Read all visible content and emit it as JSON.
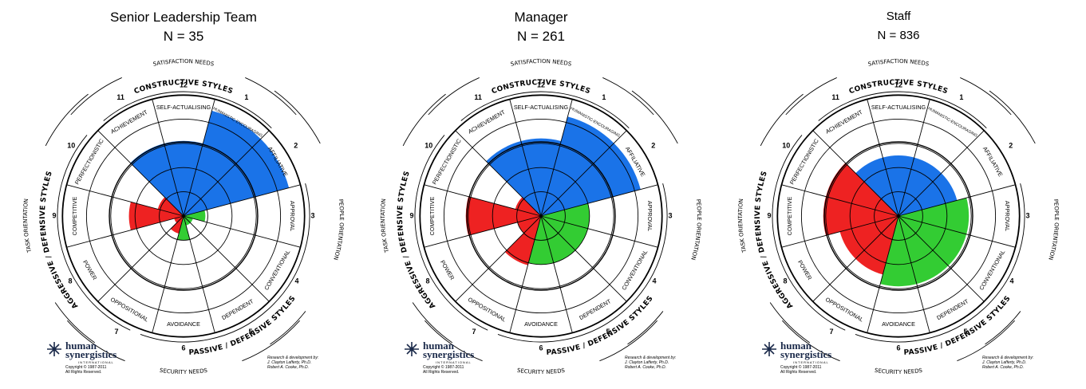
{
  "chart_data": [
    {
      "type": "circumplex",
      "title": "Senior Leadership Team",
      "subtitle": "N = 35",
      "series": [
        {
          "group": "constructive",
          "color": "#1a73e8",
          "segments": [
            {
              "number": "11",
              "label": "ACHIEVEMENT",
              "value": 0.62
            },
            {
              "number": "12",
              "label": "SELF-ACTUALISING",
              "value": 0.62
            },
            {
              "number": "1",
              "label": "HUMANISTIC-ENCOURAGING",
              "value": 0.9
            },
            {
              "number": "2",
              "label": "AFFILIATIVE",
              "value": 0.9
            }
          ]
        },
        {
          "group": "passive_defensive",
          "color": "#33cc33",
          "segments": [
            {
              "number": "3",
              "label": "APPROVAL",
              "value": 0.18
            },
            {
              "number": "4",
              "label": "CONVENTIONAL",
              "value": 0.08
            },
            {
              "number": "5",
              "label": "DEPENDENT",
              "value": 0.08
            },
            {
              "number": "6",
              "label": "AVOIDANCE",
              "value": 0.2
            }
          ]
        },
        {
          "group": "aggressive_defensive",
          "color": "#ee2222",
          "segments": [
            {
              "number": "7",
              "label": "OPPOSITIONAL",
              "value": 0.15
            },
            {
              "number": "8",
              "label": "POWER",
              "value": 0.08
            },
            {
              "number": "9",
              "label": "COMPETITIVE",
              "value": 0.45
            },
            {
              "number": "10",
              "label": "PERFECTIONISTIC",
              "value": 0.22
            }
          ]
        }
      ]
    },
    {
      "type": "circumplex",
      "title": "Manager",
      "subtitle": "N = 261",
      "series": [
        {
          "group": "constructive",
          "color": "#1a73e8",
          "segments": [
            {
              "number": "11",
              "label": "ACHIEVEMENT",
              "value": 0.64
            },
            {
              "number": "12",
              "label": "SELF-ACTUALISING",
              "value": 0.64
            },
            {
              "number": "1",
              "label": "HUMANISTIC-ENCOURAGING",
              "value": 0.85
            },
            {
              "number": "2",
              "label": "AFFILIATIVE",
              "value": 0.85
            }
          ]
        },
        {
          "group": "passive_defensive",
          "color": "#33cc33",
          "segments": [
            {
              "number": "3",
              "label": "APPROVAL",
              "value": 0.4
            },
            {
              "number": "4",
              "label": "CONVENTIONAL",
              "value": 0.4
            },
            {
              "number": "5",
              "label": "DEPENDENT",
              "value": 0.4
            },
            {
              "number": "6",
              "label": "AVOIDANCE",
              "value": 0.4
            }
          ]
        },
        {
          "group": "aggressive_defensive",
          "color": "#ee2222",
          "segments": [
            {
              "number": "7",
              "label": "OPPOSITIONAL",
              "value": 0.42
            },
            {
              "number": "8",
              "label": "POWER",
              "value": 0.2
            },
            {
              "number": "9",
              "label": "COMPETITIVE",
              "value": 0.62
            },
            {
              "number": "10",
              "label": "PERFECTIONISTIC",
              "value": 0.22
            }
          ]
        }
      ]
    },
    {
      "type": "circumplex",
      "title": "Staff",
      "subtitle": "N = 836",
      "series": [
        {
          "group": "constructive",
          "color": "#1a73e8",
          "segments": [
            {
              "number": "11",
              "label": "ACHIEVEMENT",
              "value": 0.5
            },
            {
              "number": "12",
              "label": "SELF-ACTUALISING",
              "value": 0.5
            },
            {
              "number": "1",
              "label": "HUMANISTIC-ENCOURAGING",
              "value": 0.5
            },
            {
              "number": "2",
              "label": "AFFILIATIVE",
              "value": 0.5
            }
          ]
        },
        {
          "group": "passive_defensive",
          "color": "#33cc33",
          "segments": [
            {
              "number": "3",
              "label": "APPROVAL",
              "value": 0.58
            },
            {
              "number": "4",
              "label": "CONVENTIONAL",
              "value": 0.58
            },
            {
              "number": "5",
              "label": "DEPENDENT",
              "value": 0.58
            },
            {
              "number": "6",
              "label": "AVOIDANCE",
              "value": 0.58
            }
          ]
        },
        {
          "group": "aggressive_defensive",
          "color": "#ee2222",
          "segments": [
            {
              "number": "7",
              "label": "OPPOSITIONAL",
              "value": 0.5
            },
            {
              "number": "8",
              "label": "POWER",
              "value": 0.5
            },
            {
              "number": "9",
              "label": "COMPETITIVE",
              "value": 0.62
            },
            {
              "number": "10",
              "label": "PERFECTIONISTIC",
              "value": 0.62
            }
          ]
        }
      ]
    }
  ],
  "circumplex_labels": {
    "constructive": "CONSTRUCTIVE STYLES",
    "passive_defensive": "PASSIVE / DEFENSIVE STYLES",
    "aggressive_defensive": "AGGRESSIVE / DEFENSIVE STYLES",
    "satisfaction": "SATISFACTION NEEDS",
    "security": "SECURITY NEEDS",
    "people": "PEOPLE ORIENTATION",
    "task": "TASK ORIENTATION"
  },
  "logo": {
    "name_line1": "human",
    "name_line2": "synergistics",
    "international": "INTERNATIONAL",
    "copyright": "Copyright © 1987-2011",
    "rights": "All Rights Reserved."
  },
  "research": {
    "line1": "Research & development by:",
    "line2": "J. Clayton Lafferty, Ph.D.",
    "line3": "Robert A. Cooke, Ph.D."
  }
}
